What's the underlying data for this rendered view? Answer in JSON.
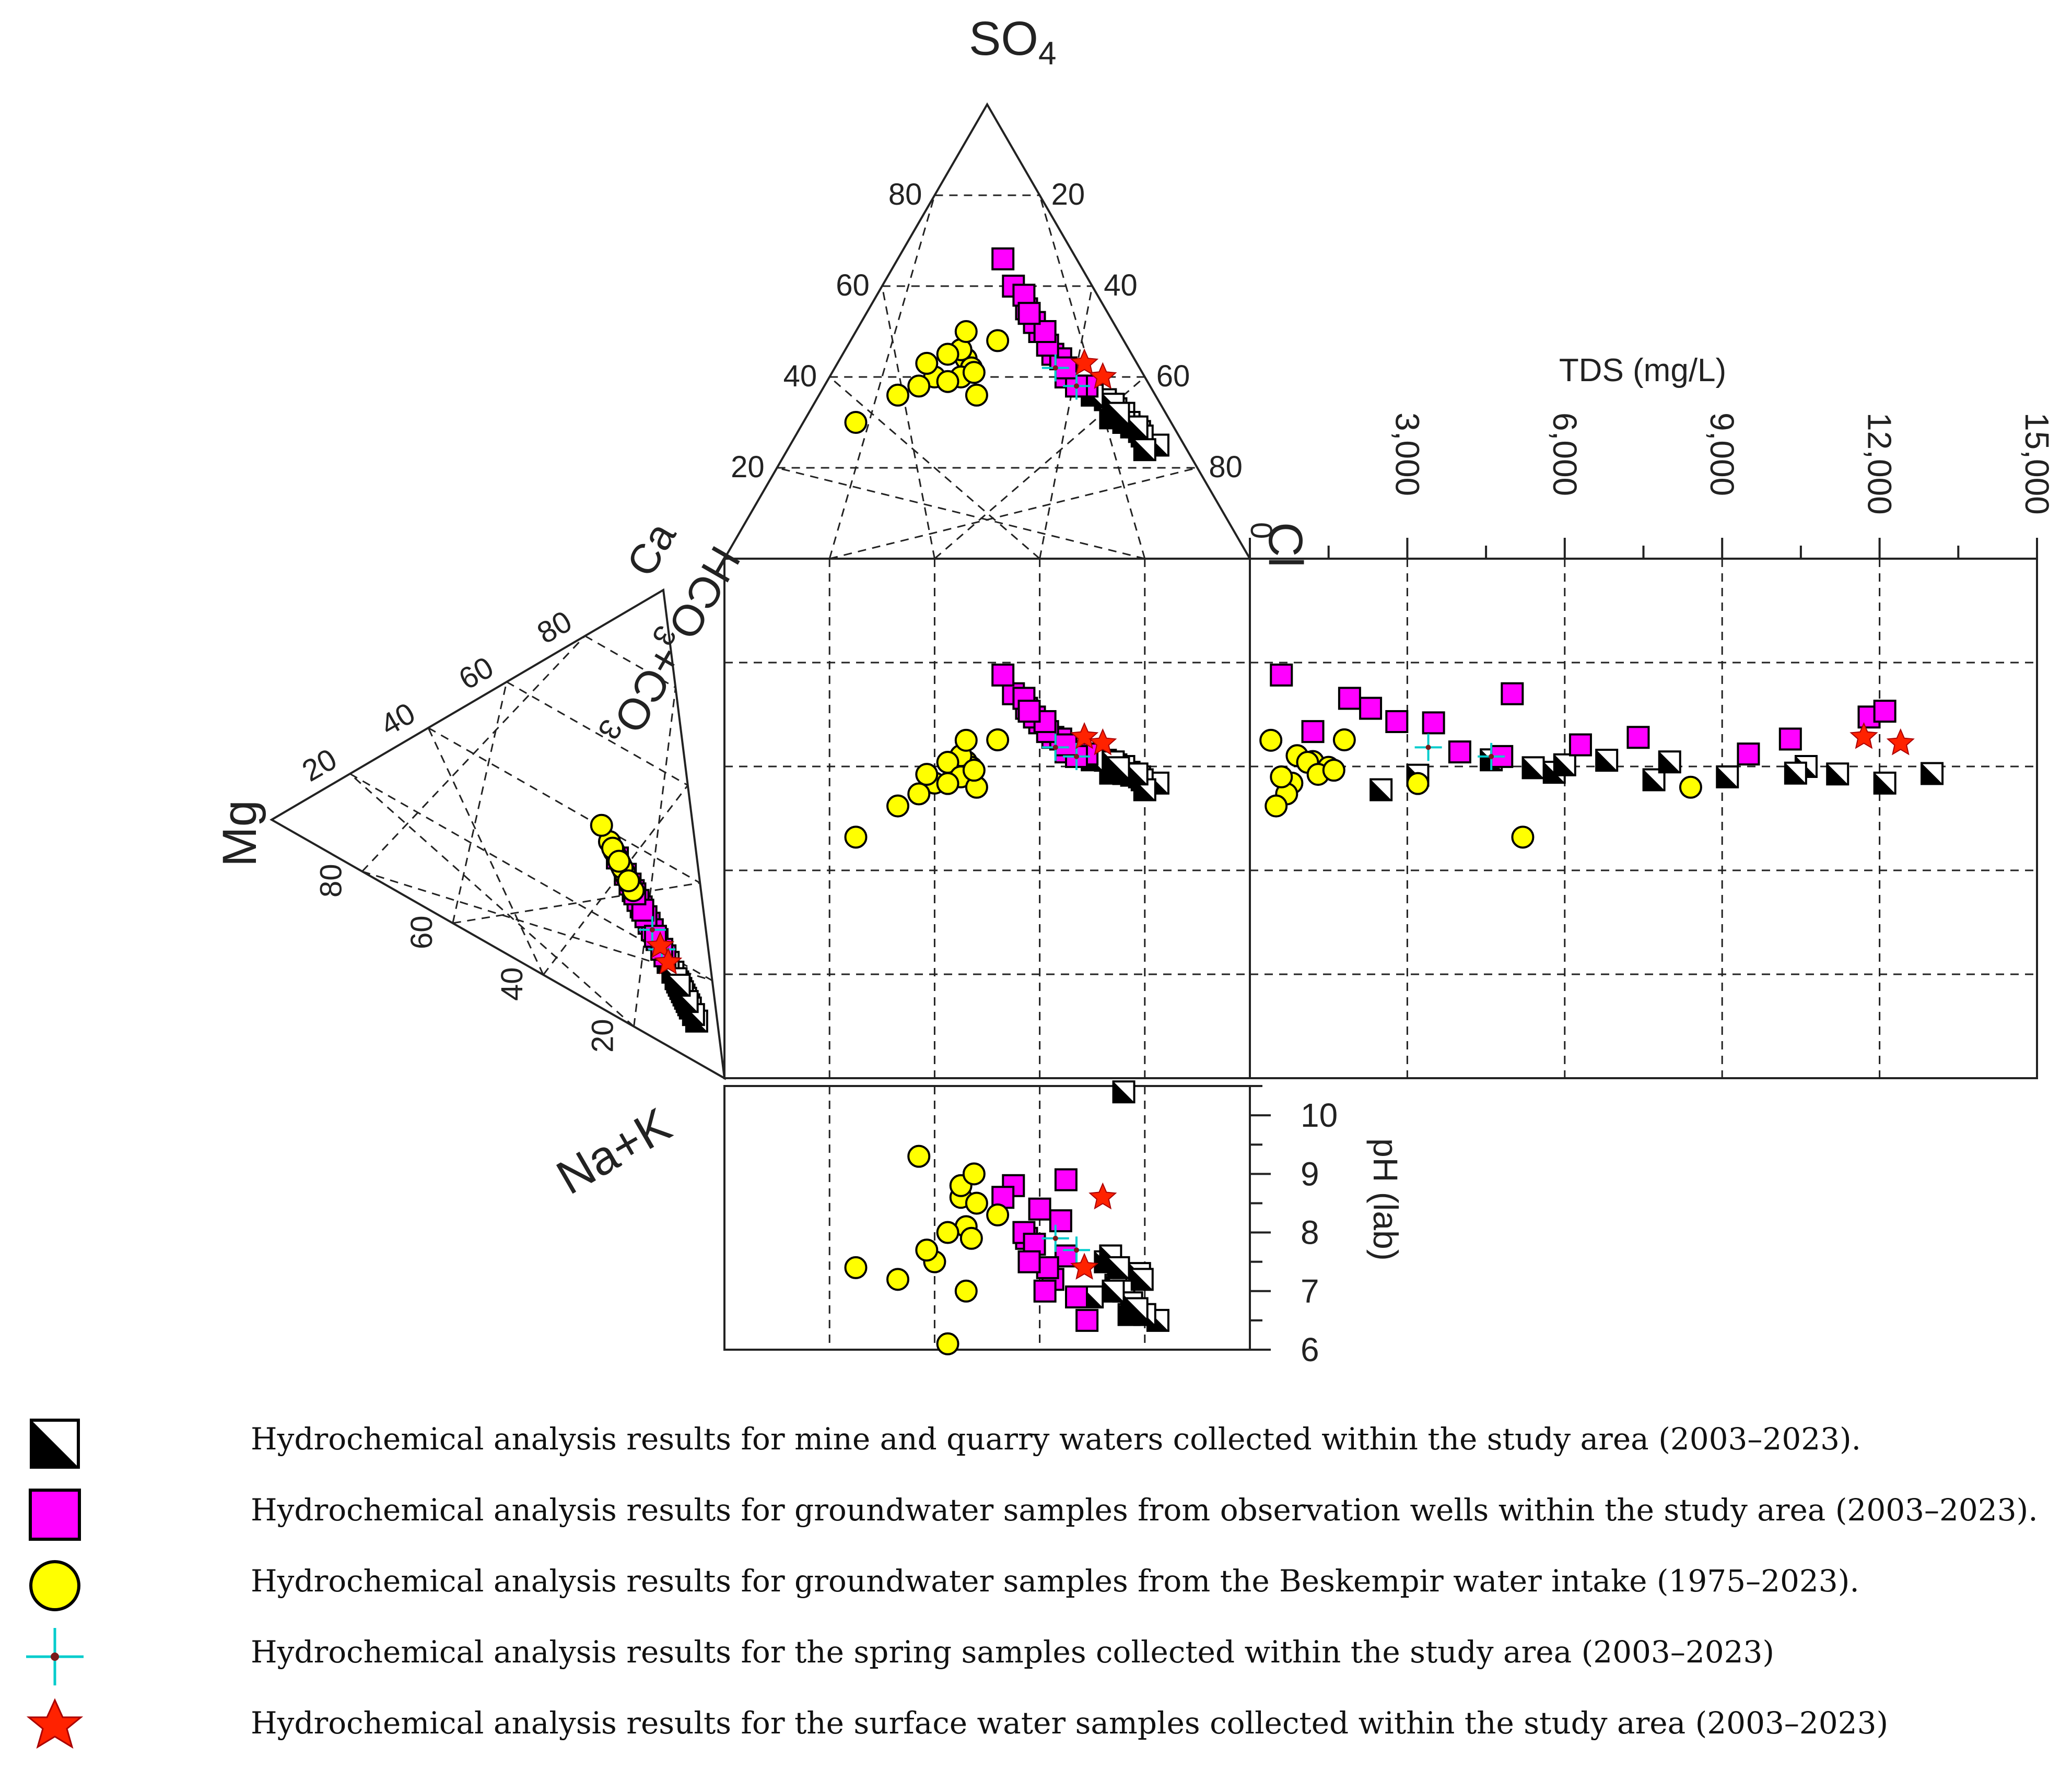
{
  "chart_data": {
    "type": "scatter",
    "title": "",
    "apex_labels": {
      "so4": "SO",
      "so4_sub": "4",
      "cl": "Cl",
      "mg": "Mg",
      "ca": "Ca",
      "na_k": "Na+K",
      "hco3_co3": "HCO",
      "hco3_sub": "3",
      "co3_plus": "+CO",
      "co3_sub": "3"
    },
    "anion_ticks_left": [
      "80",
      "60",
      "40",
      "20"
    ],
    "anion_ticks_right": [
      "20",
      "40",
      "60",
      "80"
    ],
    "anion_tick_zero": "0",
    "cation_ticks_left": [
      "80",
      "60",
      "40",
      "20"
    ],
    "cation_ticks_bottom": [
      "80",
      "60",
      "40",
      "20"
    ],
    "tds_axis": {
      "label": "TDS (mg/L)",
      "ticks": [
        "3,000",
        "6,000",
        "9,000",
        "12,000",
        "15,000"
      ],
      "range": [
        0,
        15000
      ]
    },
    "ph_axis": {
      "label": "pH (lab)",
      "ticks": [
        "10",
        "9",
        "8",
        "7",
        "6"
      ],
      "range": [
        6,
        10.5
      ]
    },
    "series": [
      {
        "key": "mine",
        "color": "#000000",
        "marker": "half-square",
        "points": [
          {
            "cl": 62,
            "so4": 30,
            "tds": 5800,
            "ph": 6.6
          },
          {
            "cl": 58,
            "so4": 33,
            "tds": 6000,
            "ph": 7.1
          },
          {
            "cl": 65,
            "so4": 28,
            "tds": 9100,
            "ph": 7.3
          },
          {
            "cl": 70,
            "so4": 25,
            "tds": 12100,
            "ph": 6.5
          },
          {
            "cl": 60,
            "so4": 32,
            "tds": 10600,
            "ph": 7.0
          },
          {
            "cl": 55,
            "so4": 35,
            "tds": 6800,
            "ph": 7.5
          },
          {
            "cl": 63,
            "so4": 29,
            "tds": 3200,
            "ph": 6.8
          },
          {
            "cl": 58,
            "so4": 31,
            "tds": 10400,
            "ph": 7.6
          },
          {
            "cl": 52,
            "so4": 36,
            "tds": 4600,
            "ph": 6.9
          },
          {
            "cl": 66,
            "so4": 27,
            "tds": 7700,
            "ph": 7.2
          },
          {
            "cl": 61,
            "so4": 30,
            "tds": 13000,
            "ph": 10.4
          },
          {
            "cl": 68,
            "so4": 24,
            "tds": 2500,
            "ph": 6.6
          },
          {
            "cl": 57,
            "so4": 34,
            "tds": 8000,
            "ph": 7.0
          },
          {
            "cl": 64,
            "so4": 29,
            "tds": 11200,
            "ph": 6.7
          },
          {
            "cl": 59,
            "so4": 32,
            "tds": 5400,
            "ph": 7.4
          }
        ]
      },
      {
        "key": "wells",
        "color": "#ff00ff",
        "marker": "square",
        "points": [
          {
            "cl": 30,
            "so4": 55,
            "tds": 2300,
            "ph": 7.9
          },
          {
            "cl": 35,
            "so4": 50,
            "tds": 3500,
            "ph": 8.4
          },
          {
            "cl": 45,
            "so4": 40,
            "tds": 4000,
            "ph": 7.6
          },
          {
            "cl": 25,
            "so4": 60,
            "tds": 5000,
            "ph": 8.8
          },
          {
            "cl": 40,
            "so4": 45,
            "tds": 7400,
            "ph": 7.2
          },
          {
            "cl": 50,
            "so4": 38,
            "tds": 9500,
            "ph": 6.5
          },
          {
            "cl": 28,
            "so4": 58,
            "tds": 1900,
            "ph": 8.0
          },
          {
            "cl": 33,
            "so4": 52,
            "tds": 11800,
            "ph": 7.8
          },
          {
            "cl": 42,
            "so4": 44,
            "tds": 10300,
            "ph": 8.2
          },
          {
            "cl": 38,
            "so4": 47,
            "tds": 1200,
            "ph": 7.4
          },
          {
            "cl": 48,
            "so4": 38,
            "tds": 4800,
            "ph": 6.9
          },
          {
            "cl": 20,
            "so4": 66,
            "tds": 600,
            "ph": 8.6
          },
          {
            "cl": 36,
            "so4": 50,
            "tds": 2800,
            "ph": 7.0
          },
          {
            "cl": 44,
            "so4": 42,
            "tds": 6300,
            "ph": 8.9
          },
          {
            "cl": 31,
            "so4": 54,
            "tds": 12100,
            "ph": 7.5
          }
        ]
      },
      {
        "key": "beskempir",
        "color": "#ffff00",
        "marker": "circle",
        "points": [
          {
            "cl": 20,
            "so4": 40,
            "tds": 800,
            "ph": 7.5
          },
          {
            "cl": 24,
            "so4": 44,
            "tds": 1200,
            "ph": 8.1
          },
          {
            "cl": 18,
            "so4": 38,
            "tds": 700,
            "ph": 9.3
          },
          {
            "cl": 26,
            "so4": 42,
            "tds": 1500,
            "ph": 7.9
          },
          {
            "cl": 22,
            "so4": 46,
            "tds": 900,
            "ph": 8.6
          },
          {
            "cl": 15,
            "so4": 36,
            "tds": 500,
            "ph": 7.2
          },
          {
            "cl": 28,
            "so4": 48,
            "tds": 1800,
            "ph": 8.3
          },
          {
            "cl": 20,
            "so4": 45,
            "tds": 1100,
            "ph": 6.1
          },
          {
            "cl": 25,
            "so4": 40,
            "tds": 600,
            "ph": 8.8
          },
          {
            "cl": 17,
            "so4": 43,
            "tds": 1300,
            "ph": 7.7
          },
          {
            "cl": 23,
            "so4": 39,
            "tds": 3200,
            "ph": 8.0
          },
          {
            "cl": 10,
            "so4": 30,
            "tds": 5200,
            "ph": 7.4
          },
          {
            "cl": 30,
            "so4": 36,
            "tds": 8400,
            "ph": 8.5
          },
          {
            "cl": 21,
            "so4": 50,
            "tds": 400,
            "ph": 7.0
          },
          {
            "cl": 27,
            "so4": 41,
            "tds": 1600,
            "ph": 9.0
          }
        ]
      },
      {
        "key": "spring",
        "color": "#00cccc",
        "marker": "cross",
        "points": [
          {
            "cl": 42,
            "so4": 42,
            "tds": 3400,
            "ph": 7.9
          },
          {
            "cl": 48,
            "so4": 38,
            "tds": 4600,
            "ph": 7.7
          }
        ]
      },
      {
        "key": "surface",
        "color": "#ff2200",
        "marker": "star",
        "points": [
          {
            "cl": 47,
            "so4": 43,
            "tds": 11700,
            "ph": 7.4
          },
          {
            "cl": 52,
            "so4": 40,
            "tds": 12400,
            "ph": 8.6
          }
        ]
      }
    ]
  },
  "legend": {
    "items": [
      {
        "key": "mine",
        "label": "Hydrochemical analysis results for mine and quarry waters collected within the study area (2003–2023)."
      },
      {
        "key": "wells",
        "label": "Hydrochemical analysis results for groundwater samples from observation wells within the study area (2003–2023)."
      },
      {
        "key": "beskempir",
        "label": "Hydrochemical analysis results for groundwater samples from the Beskempir water intake (1975–2023)."
      },
      {
        "key": "spring",
        "label": "Hydrochemical analysis results for the spring samples collected within the study area (2003–2023)"
      },
      {
        "key": "surface",
        "label": "Hydrochemical analysis results for the surface water samples collected within the study area (2003–2023)"
      }
    ]
  }
}
